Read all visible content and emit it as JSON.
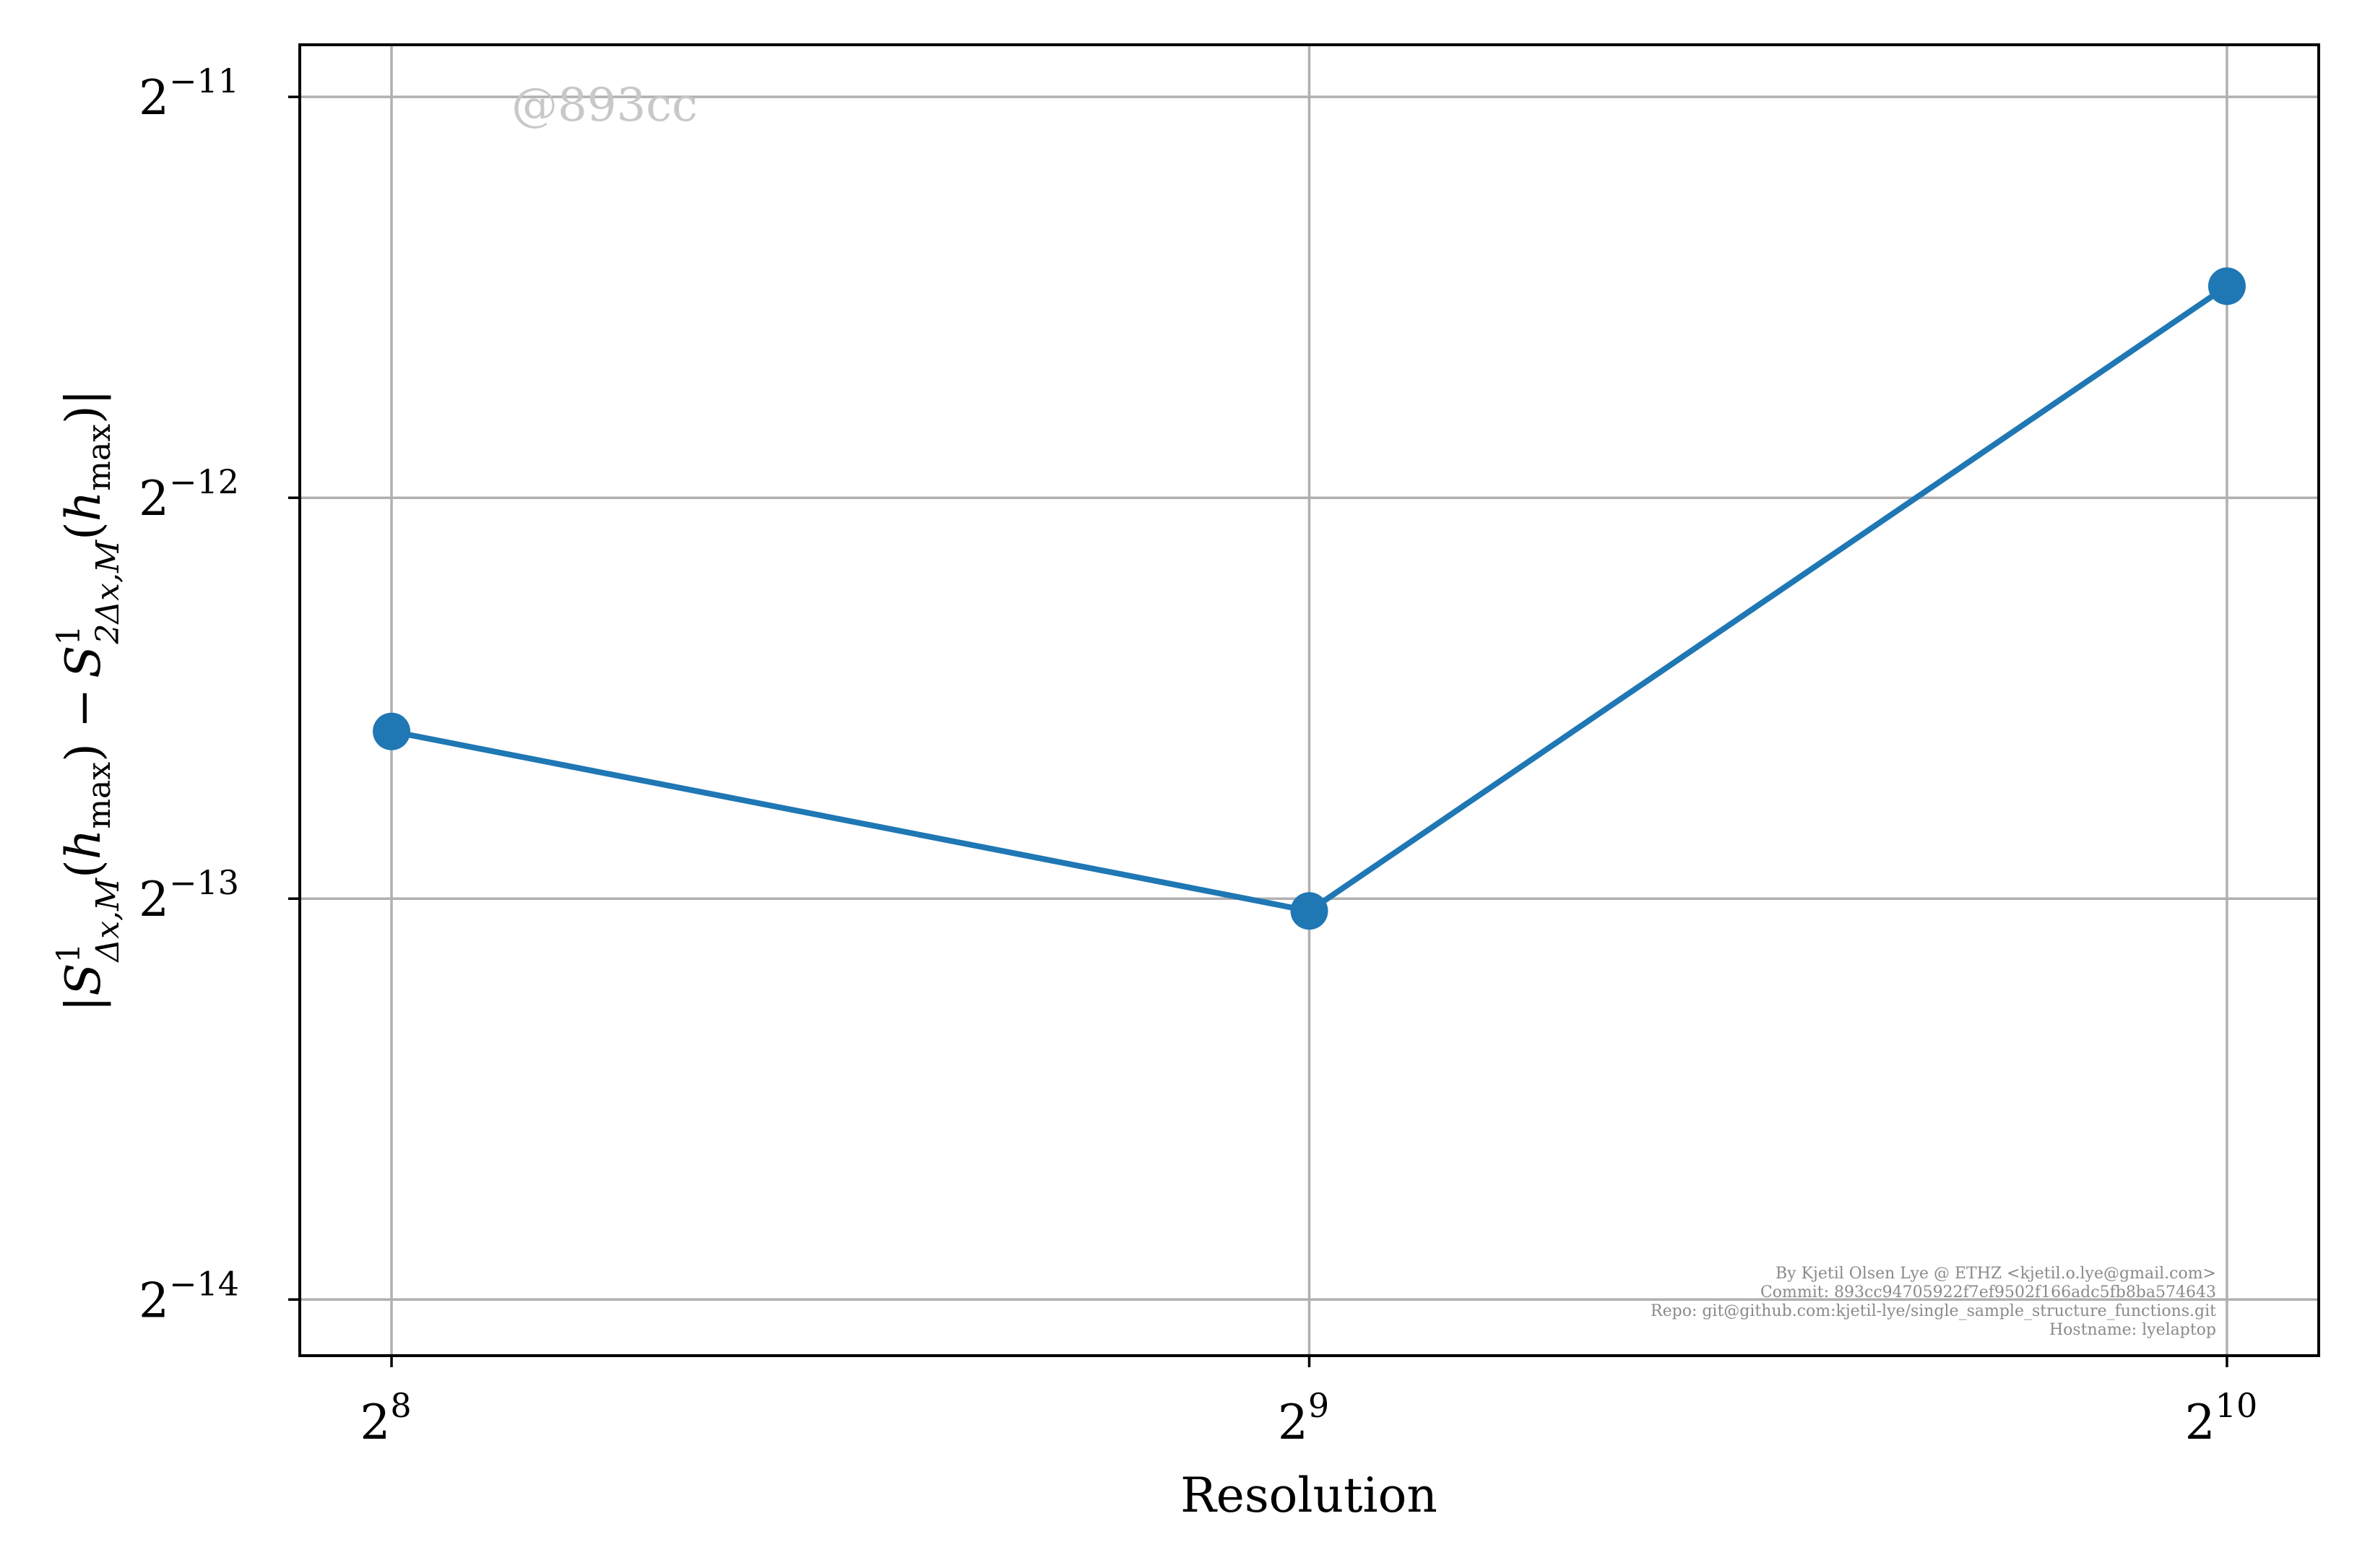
{
  "chart_data": {
    "type": "line",
    "xscale": "log2",
    "yscale": "log2",
    "x": [
      256,
      512,
      1024
    ],
    "x_tick_labels": [
      {
        "base": "2",
        "exp": "8"
      },
      {
        "base": "2",
        "exp": "9"
      },
      {
        "base": "2",
        "exp": "10"
      }
    ],
    "y_tick_labels": [
      {
        "base": "2",
        "exp": "−11"
      },
      {
        "base": "2",
        "exp": "−12"
      },
      {
        "base": "2",
        "exp": "−13"
      },
      {
        "base": "2",
        "exp": "−14"
      }
    ],
    "series": [
      {
        "values": [
          0.000163,
          0.0001195,
          0.000352
        ],
        "color": "#1f77b4",
        "marker": "circle"
      }
    ],
    "xlim_log2": [
      7.9,
      10.1
    ],
    "ylim_log2": [
      -14.14,
      -10.87
    ],
    "xlabel": "Resolution",
    "ylabel": "|S¹Δx,M(hmax) − S¹2Δx,M(hmax)|",
    "ylabel_parts": {
      "bar": "|",
      "S": "S",
      "sup": "1",
      "sub1": "Δx,M",
      "sub2": "2Δx,M",
      "h": "h",
      "hsub": "max",
      "minus": "−"
    },
    "grid": true
  },
  "annotations": {
    "watermark": "@893cc",
    "credits": [
      "By Kjetil Olsen Lye @ ETHZ <kjetil.o.lye@gmail.com>",
      "Commit: 893cc94705922f7ef9502f166adc5fb8ba574643",
      "Repo: git@github.com:kjetil-lye/single_sample_structure_functions.git",
      "Hostname: lyelaptop"
    ]
  }
}
